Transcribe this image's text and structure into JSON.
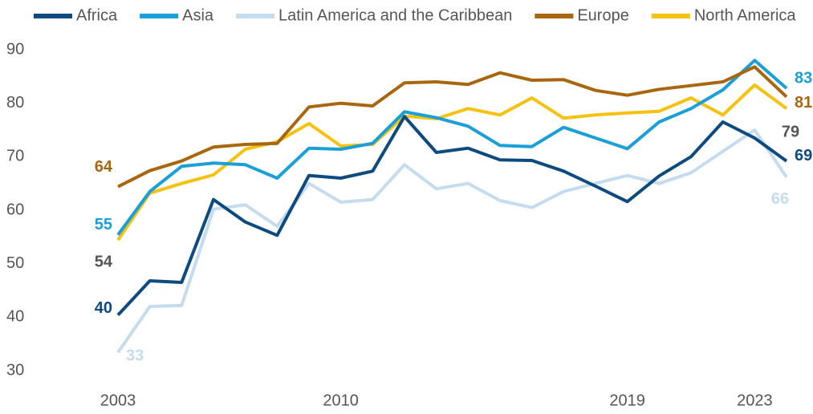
{
  "chart_data": {
    "type": "line",
    "x": [
      2003,
      2004,
      2005,
      2006,
      2007,
      2008,
      2009,
      2010,
      2011,
      2012,
      2013,
      2014,
      2015,
      2016,
      2017,
      2018,
      2019,
      2020,
      2021,
      2022,
      2023,
      2024
    ],
    "xlim": [
      2003,
      2024
    ],
    "xticks": [
      2003,
      2010,
      2019,
      2023
    ],
    "ylim": [
      30,
      90
    ],
    "yticks": [
      30,
      40,
      50,
      60,
      70,
      80,
      90
    ],
    "grid": false,
    "legend": "top",
    "series": [
      {
        "name": "Africa",
        "color": "#0d4a80",
        "values": [
          40.4,
          46.8,
          46.5,
          62,
          57.8,
          55.3,
          66.5,
          66,
          67.3,
          77.5,
          70.8,
          71.6,
          69.4,
          69.3,
          67.3,
          64.5,
          61.6,
          66.4,
          70,
          76.5,
          73.5,
          69.2
        ],
        "value_labels": [
          "40",
          null,
          null,
          null,
          null,
          null,
          null,
          null,
          null,
          null,
          null,
          null,
          null,
          null,
          null,
          null,
          null,
          null,
          null,
          null,
          null,
          "69"
        ]
      },
      {
        "name": "Asia",
        "color": "#1a9fd8",
        "values": [
          55.4,
          63.5,
          68.2,
          68.8,
          68.5,
          66,
          71.6,
          71.4,
          72.5,
          78.4,
          77.3,
          75.7,
          72.1,
          71.9,
          75.5,
          73.5,
          71.5,
          76.5,
          79,
          82.5,
          88,
          82.8
        ],
        "value_labels": [
          "55",
          null,
          null,
          null,
          null,
          null,
          null,
          null,
          null,
          null,
          null,
          null,
          null,
          null,
          null,
          null,
          null,
          null,
          null,
          null,
          null,
          "83"
        ]
      },
      {
        "name": "Latin America and the Caribbean",
        "color": "#c5dcee",
        "values": [
          33.4,
          42,
          42.2,
          60.2,
          61,
          57,
          65,
          61.5,
          62,
          68.5,
          64,
          65,
          61.8,
          60.5,
          63.5,
          65,
          66.5,
          65,
          67,
          71,
          75,
          66.2
        ],
        "value_labels": [
          "33",
          null,
          null,
          null,
          null,
          null,
          null,
          null,
          null,
          null,
          null,
          null,
          null,
          null,
          null,
          null,
          null,
          null,
          null,
          null,
          null,
          "66"
        ]
      },
      {
        "name": "Europe",
        "color": "#a8660e",
        "values": [
          64.4,
          67.4,
          69.2,
          71.8,
          72.3,
          72.5,
          79.3,
          80,
          79.5,
          83.8,
          84,
          83.5,
          85.7,
          84.3,
          84.4,
          82.4,
          81.5,
          82.6,
          83.3,
          84,
          86.8,
          81.2
        ],
        "value_labels": [
          "64",
          null,
          null,
          null,
          null,
          null,
          null,
          null,
          null,
          null,
          null,
          null,
          null,
          null,
          null,
          null,
          null,
          null,
          null,
          null,
          null,
          "81"
        ]
      },
      {
        "name": "North America",
        "color": "#f5c211",
        "values": [
          54.4,
          63.2,
          65,
          66.6,
          71.4,
          72.8,
          76.2,
          72,
          72.3,
          77.6,
          77.1,
          79,
          77.8,
          81,
          77.2,
          77.8,
          78.2,
          78.5,
          81,
          77.8,
          83.4,
          79
        ],
        "value_labels": [
          "54",
          null,
          null,
          null,
          null,
          null,
          null,
          null,
          null,
          null,
          null,
          null,
          null,
          null,
          null,
          null,
          null,
          null,
          null,
          null,
          null,
          "79"
        ]
      }
    ]
  }
}
